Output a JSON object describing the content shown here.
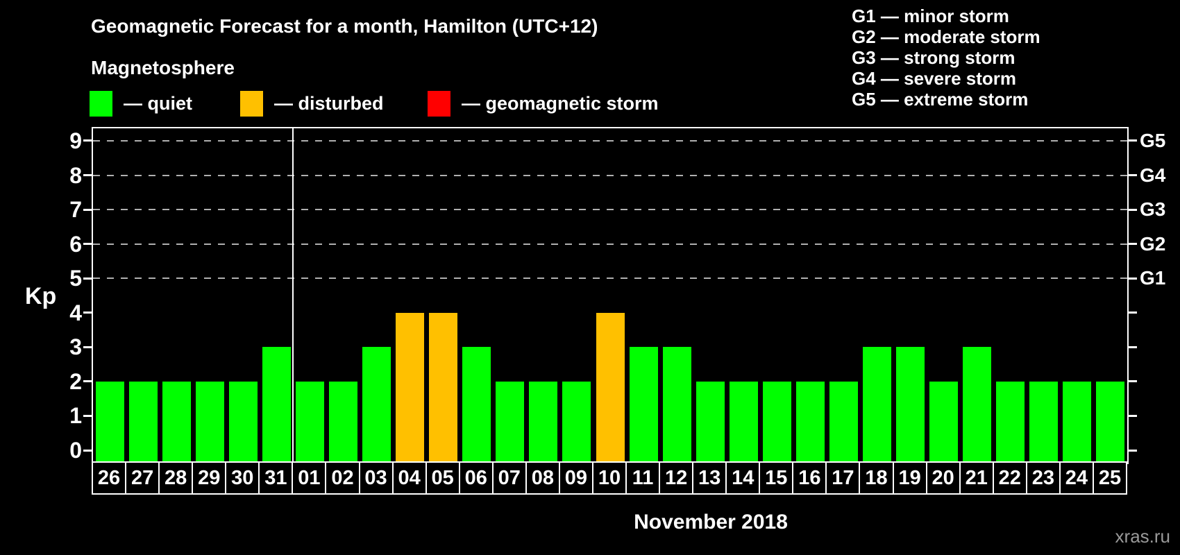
{
  "magnetosphere_label": "Magnetosphere",
  "legend": {
    "items": [
      {
        "key": "quiet",
        "label": "— quiet",
        "color": "#00ff00"
      },
      {
        "key": "disturbed",
        "label": "— disturbed",
        "color": "#ffc000"
      },
      {
        "key": "storm",
        "label": "— geomagnetic storm",
        "color": "#ff0000"
      }
    ]
  },
  "storm_scale_legend": [
    "G1 — minor storm",
    "G2 — moderate storm",
    "G3 — strong storm",
    "G4 — severe storm",
    "G5 — extreme storm"
  ],
  "watermark": "xras.ru",
  "chart_data": {
    "type": "bar",
    "title": "Geomagnetic Forecast for a month, Hamilton (UTC+12)",
    "ylabel": "Kp",
    "xlabel": "November 2018",
    "ylim": [
      0,
      9
    ],
    "y_ticks": [
      0,
      1,
      2,
      3,
      4,
      5,
      6,
      7,
      8,
      9
    ],
    "gridline_levels": [
      5,
      6,
      7,
      8,
      9
    ],
    "right_axis": [
      {
        "kp": 5,
        "label": "G1"
      },
      {
        "kp": 6,
        "label": "G2"
      },
      {
        "kp": 7,
        "label": "G3"
      },
      {
        "kp": 8,
        "label": "G4"
      },
      {
        "kp": 9,
        "label": "G5"
      }
    ],
    "grid": "dashed",
    "legend_position": "top",
    "month_separator_after": "31",
    "status_colors": {
      "quiet": "#00ff00",
      "disturbed": "#ffc000",
      "storm": "#ff0000"
    },
    "days": [
      {
        "day": "26",
        "kp": 2,
        "status": "quiet"
      },
      {
        "day": "27",
        "kp": 2,
        "status": "quiet"
      },
      {
        "day": "28",
        "kp": 2,
        "status": "quiet"
      },
      {
        "day": "29",
        "kp": 2,
        "status": "quiet"
      },
      {
        "day": "30",
        "kp": 2,
        "status": "quiet"
      },
      {
        "day": "31",
        "kp": 3,
        "status": "quiet"
      },
      {
        "day": "01",
        "kp": 2,
        "status": "quiet"
      },
      {
        "day": "02",
        "kp": 2,
        "status": "quiet"
      },
      {
        "day": "03",
        "kp": 3,
        "status": "quiet"
      },
      {
        "day": "04",
        "kp": 4,
        "status": "disturbed"
      },
      {
        "day": "05",
        "kp": 4,
        "status": "disturbed"
      },
      {
        "day": "06",
        "kp": 3,
        "status": "quiet"
      },
      {
        "day": "07",
        "kp": 2,
        "status": "quiet"
      },
      {
        "day": "08",
        "kp": 2,
        "status": "quiet"
      },
      {
        "day": "09",
        "kp": 2,
        "status": "quiet"
      },
      {
        "day": "10",
        "kp": 4,
        "status": "disturbed"
      },
      {
        "day": "11",
        "kp": 3,
        "status": "quiet"
      },
      {
        "day": "12",
        "kp": 3,
        "status": "quiet"
      },
      {
        "day": "13",
        "kp": 2,
        "status": "quiet"
      },
      {
        "day": "14",
        "kp": 2,
        "status": "quiet"
      },
      {
        "day": "15",
        "kp": 2,
        "status": "quiet"
      },
      {
        "day": "16",
        "kp": 2,
        "status": "quiet"
      },
      {
        "day": "17",
        "kp": 2,
        "status": "quiet"
      },
      {
        "day": "18",
        "kp": 3,
        "status": "quiet"
      },
      {
        "day": "19",
        "kp": 3,
        "status": "quiet"
      },
      {
        "day": "20",
        "kp": 2,
        "status": "quiet"
      },
      {
        "day": "21",
        "kp": 3,
        "status": "quiet"
      },
      {
        "day": "22",
        "kp": 2,
        "status": "quiet"
      },
      {
        "day": "23",
        "kp": 2,
        "status": "quiet"
      },
      {
        "day": "24",
        "kp": 2,
        "status": "quiet"
      },
      {
        "day": "25",
        "kp": 2,
        "status": "quiet"
      }
    ]
  }
}
